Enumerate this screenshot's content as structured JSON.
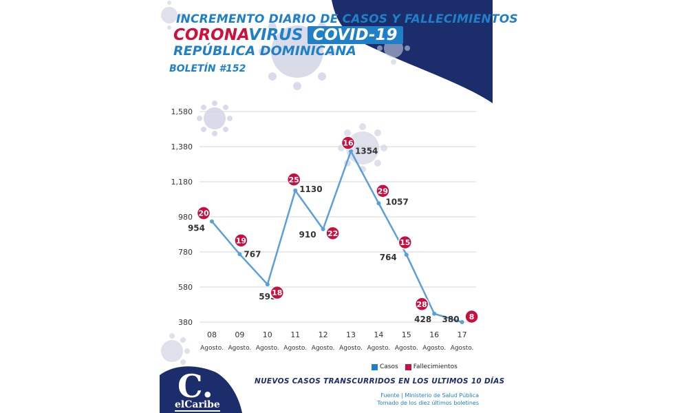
{
  "header": {
    "title_line1": "INCREMENTO DIARIO DE CASOS Y FALLECIMIENTOS",
    "title_corona": "CORONA",
    "title_virus": "VIRUS",
    "title_covid": "COVID-19",
    "title_country": "REPÚBLICA DOMINICANA",
    "bulletin": "BOLETÍN #152"
  },
  "colors": {
    "navy": "#1b2d6b",
    "blue": "#1f80c8",
    "line": "#5a9fd9",
    "death": "#c8103e",
    "virus": "#b8bcd6"
  },
  "chart_data": {
    "type": "line",
    "categories": [
      "08",
      "09",
      "10",
      "11",
      "12",
      "13",
      "14",
      "15",
      "16",
      "17"
    ],
    "category_sublabel": "Agosto.",
    "series": [
      {
        "name": "Casos",
        "values": [
          954,
          767,
          595,
          1130,
          910,
          1354,
          1057,
          764,
          428,
          380
        ]
      },
      {
        "name": "Fallecimientos",
        "values": [
          20,
          19,
          18,
          25,
          22,
          16,
          29,
          15,
          28,
          8
        ]
      }
    ],
    "yticks": [
      "380",
      "580",
      "780",
      "980",
      "1,180",
      "1,380",
      "1,580"
    ],
    "ylim": [
      380,
      1580
    ],
    "grid": true,
    "legend": "bottom-right"
  },
  "footer": {
    "subtitle": "NUEVOS CASOS TRANSCURRIDOS EN LOS ULTIMOS 10 DÍAS",
    "source_line1": "Fuente | Ministerio de Salud Pública",
    "source_line2": "Tomado de  los diez últimos boletines",
    "logo_letter": "C.",
    "logo_brand": "elCaribe"
  }
}
